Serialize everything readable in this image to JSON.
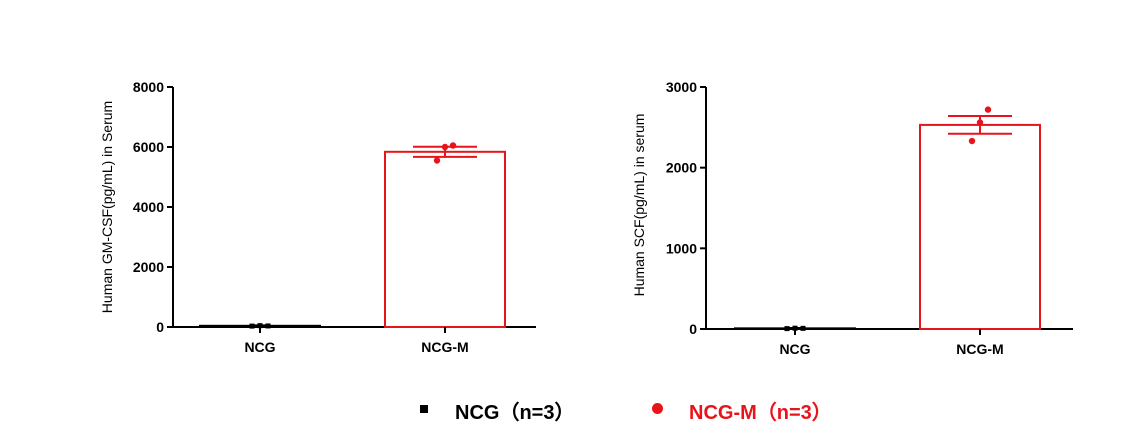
{
  "chart_data": [
    {
      "type": "bar",
      "ylabel": "Human GM-CSF(pg/mL) in Serum",
      "xlabel": "",
      "categories": [
        "NCG",
        "NCG-M"
      ],
      "ylim": [
        0,
        8000
      ],
      "yticks": [
        0,
        2000,
        4000,
        6000,
        8000
      ],
      "ytick_labels": [
        "0",
        "2000",
        "4000",
        "6000",
        "8000"
      ],
      "means": [
        40,
        5840
      ],
      "errors": [
        15,
        170
      ],
      "points": [
        [
          30,
          45,
          35
        ],
        [
          5550,
          6000,
          6050
        ]
      ],
      "colors": [
        "#000000",
        "#e8141b"
      ]
    },
    {
      "type": "bar",
      "ylabel": "Human SCF(pg/mL) in serum",
      "xlabel": "",
      "categories": [
        "NCG",
        "NCG-M"
      ],
      "ylim": [
        0,
        3000
      ],
      "yticks": [
        0,
        1000,
        2000,
        3000
      ],
      "ytick_labels": [
        "0",
        "1000",
        "2000",
        "3000"
      ],
      "means": [
        8,
        2530
      ],
      "errors": [
        4,
        110
      ],
      "points": [
        [
          5,
          10,
          8
        ],
        [
          2330,
          2560,
          2720
        ]
      ],
      "colors": [
        "#000000",
        "#e8141b"
      ]
    }
  ],
  "legend": {
    "items": [
      {
        "label": "NCG（n=3）",
        "color": "#000000",
        "marker": "square"
      },
      {
        "label": "NCG-M（n=3）",
        "color": "#e8141b",
        "marker": "circle"
      }
    ]
  }
}
